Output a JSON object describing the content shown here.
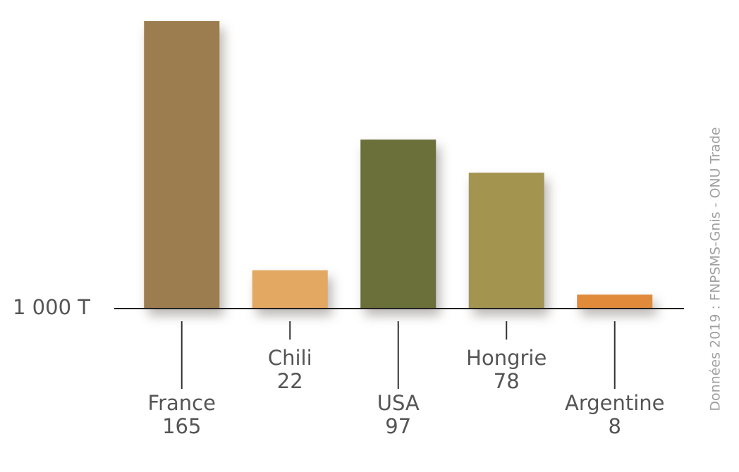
{
  "chart_data": {
    "type": "bar",
    "unit_label": "1 000 T",
    "source": "Données 2019 : FNPSMS-Gnis - ONU Trade",
    "categories": [
      "France",
      "Chili",
      "USA",
      "Hongrie",
      "Argentine"
    ],
    "values": [
      165,
      22,
      97,
      78,
      8
    ],
    "colors": [
      "#9b7d50",
      "#e3a862",
      "#6b703b",
      "#a39550",
      "#e08a3a"
    ],
    "ylim": [
      0,
      165
    ]
  }
}
